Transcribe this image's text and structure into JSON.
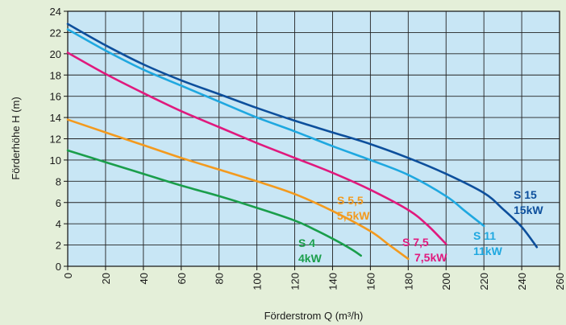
{
  "chart_data": {
    "type": "line",
    "xlabel": "Förderstrom Q (m³/h)",
    "ylabel": "Förderhöhe H (m)",
    "xlim": [
      0,
      260
    ],
    "ylim": [
      0,
      24
    ],
    "xticks": [
      0,
      20,
      40,
      60,
      80,
      100,
      120,
      140,
      160,
      180,
      200,
      220,
      240,
      260
    ],
    "yticks": [
      0,
      2,
      4,
      6,
      8,
      10,
      12,
      14,
      16,
      18,
      20,
      22,
      24
    ],
    "grid": true,
    "plot_background": "#c8e6f5",
    "series": [
      {
        "name": "S 4",
        "power": "4kW",
        "color": "#1a9e4b",
        "x": [
          0,
          20,
          40,
          60,
          80,
          100,
          120,
          130,
          140,
          150,
          155
        ],
        "y": [
          10.9,
          9.8,
          8.7,
          7.6,
          6.6,
          5.5,
          4.3,
          3.5,
          2.6,
          1.6,
          1.0
        ]
      },
      {
        "name": "S 5,5",
        "power": "5,5kW",
        "color": "#f39a1e",
        "x": [
          0,
          20,
          40,
          60,
          80,
          100,
          120,
          140,
          160,
          170,
          180
        ],
        "y": [
          13.8,
          12.6,
          11.4,
          10.2,
          9.1,
          8.0,
          6.8,
          5.2,
          3.3,
          2.0,
          0.7
        ]
      },
      {
        "name": "S 7,5",
        "power": "7,5kW",
        "color": "#e0197d",
        "x": [
          0,
          20,
          40,
          60,
          80,
          100,
          120,
          140,
          160,
          180,
          190,
          200
        ],
        "y": [
          20.1,
          18.1,
          16.3,
          14.6,
          13.1,
          11.6,
          10.2,
          8.8,
          7.2,
          5.3,
          3.9,
          2.1
        ]
      },
      {
        "name": "S 11",
        "power": "11kW",
        "color": "#1fa8e0",
        "x": [
          0,
          20,
          40,
          60,
          80,
          100,
          120,
          140,
          160,
          180,
          200,
          210,
          220
        ],
        "y": [
          22.3,
          20.3,
          18.5,
          17.0,
          15.5,
          14.0,
          12.7,
          11.3,
          10.0,
          8.6,
          6.6,
          5.2,
          3.8
        ]
      },
      {
        "name": "S 15",
        "power": "15kW",
        "color": "#0d4f9c",
        "x": [
          0,
          20,
          40,
          60,
          80,
          100,
          120,
          140,
          160,
          180,
          200,
          220,
          230,
          240,
          248
        ],
        "y": [
          22.8,
          20.8,
          19.0,
          17.5,
          16.2,
          14.9,
          13.7,
          12.6,
          11.5,
          10.2,
          8.7,
          6.9,
          5.4,
          3.7,
          1.8
        ]
      }
    ]
  }
}
